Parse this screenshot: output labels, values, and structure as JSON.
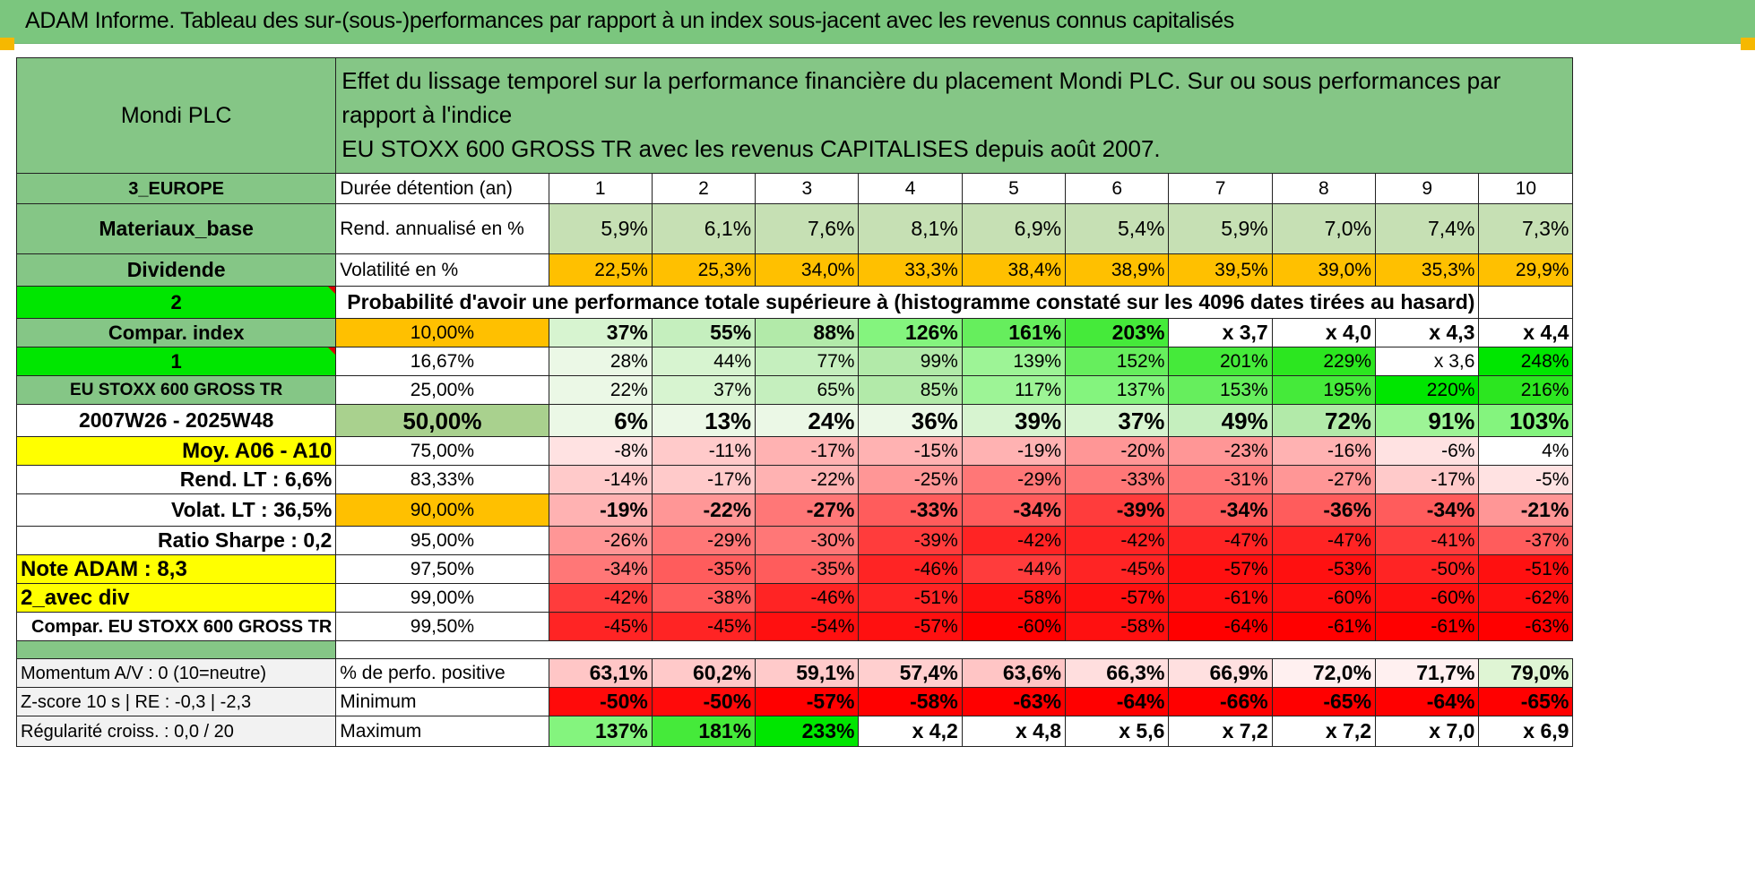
{
  "title": "ADAM Informe. Tableau des sur-(sous-)performances par rapport à un index sous-jacent avec les revenus connus capitalisés",
  "header": {
    "company": "Mondi PLC",
    "description_l1": "Effet du lissage temporel sur la performance financière du placement Mondi PLC. Sur ou sous performances par rapport à l'indice",
    "description_l2": "EU STOXX 600 GROSS TR avec les revenus CAPITALISES depuis août 2007."
  },
  "top_rows": [
    {
      "left": "3_EUROPE",
      "label": "Durée détention (an)",
      "values": [
        "1",
        "2",
        "3",
        "4",
        "5",
        "6",
        "7",
        "8",
        "9",
        "10"
      ]
    },
    {
      "left": "Materiaux_base",
      "label": "Rend. annualisé en %",
      "values": [
        "5,9%",
        "6,1%",
        "7,6%",
        "8,1%",
        "6,9%",
        "5,4%",
        "5,9%",
        "7,0%",
        "7,4%",
        "7,3%"
      ]
    },
    {
      "left": "Dividende",
      "label": "Volatilité en %",
      "values": [
        "22,5%",
        "25,3%",
        "34,0%",
        "33,3%",
        "38,4%",
        "38,9%",
        "39,5%",
        "39,0%",
        "35,3%",
        "29,9%"
      ]
    }
  ],
  "probability_row": {
    "left": "2",
    "text": "Probabilité d'avoir une performance totale supérieure à (histogramme constaté sur les 4096 dates tirées au hasard)"
  },
  "prob_rows": [
    {
      "left": "Compar. index",
      "pct": "10,00%",
      "values": [
        "37%",
        "55%",
        "88%",
        "126%",
        "161%",
        "203%",
        "x 3,7",
        "x 4,0",
        "x 4,3",
        "x 4,4"
      ]
    },
    {
      "left": "1",
      "pct": "16,67%",
      "values": [
        "28%",
        "44%",
        "77%",
        "99%",
        "139%",
        "152%",
        "201%",
        "229%",
        "x 3,6",
        "248%"
      ]
    },
    {
      "left": "EU STOXX 600 GROSS TR",
      "pct": "25,00%",
      "values": [
        "22%",
        "37%",
        "65%",
        "85%",
        "117%",
        "137%",
        "153%",
        "195%",
        "220%",
        "216%"
      ]
    },
    {
      "left": "2007W26 - 2025W48",
      "pct": "50,00%",
      "values": [
        "6%",
        "13%",
        "24%",
        "36%",
        "39%",
        "37%",
        "49%",
        "72%",
        "91%",
        "103%"
      ]
    },
    {
      "left": "Moy. A06 - A10",
      "pct": "75,00%",
      "values": [
        "-8%",
        "-11%",
        "-17%",
        "-15%",
        "-19%",
        "-20%",
        "-23%",
        "-16%",
        "-6%",
        "4%"
      ]
    },
    {
      "left": "Rend. LT :    6,6%",
      "pct": "83,33%",
      "values": [
        "-14%",
        "-17%",
        "-22%",
        "-25%",
        "-29%",
        "-33%",
        "-31%",
        "-27%",
        "-17%",
        "-5%"
      ]
    },
    {
      "left": "Volat. LT :    36,5%",
      "pct": "90,00%",
      "values": [
        "-19%",
        "-22%",
        "-27%",
        "-33%",
        "-34%",
        "-39%",
        "-34%",
        "-36%",
        "-34%",
        "-21%"
      ]
    },
    {
      "left": "Ratio Sharpe :     0,2",
      "pct": "95,00%",
      "values": [
        "-26%",
        "-29%",
        "-30%",
        "-39%",
        "-42%",
        "-42%",
        "-47%",
        "-47%",
        "-41%",
        "-37%"
      ]
    },
    {
      "left": "Note ADAM : 8,3",
      "pct": "97,50%",
      "values": [
        "-34%",
        "-35%",
        "-35%",
        "-46%",
        "-44%",
        "-45%",
        "-57%",
        "-53%",
        "-50%",
        "-51%"
      ]
    },
    {
      "left": "2_avec div",
      "pct": "99,00%",
      "values": [
        "-42%",
        "-38%",
        "-46%",
        "-51%",
        "-58%",
        "-57%",
        "-61%",
        "-60%",
        "-60%",
        "-62%"
      ]
    },
    {
      "left": "Compar. EU STOXX 600 GROSS TR",
      "pct": "99,50%",
      "values": [
        "-45%",
        "-45%",
        "-54%",
        "-57%",
        "-60%",
        "-58%",
        "-64%",
        "-61%",
        "-61%",
        "-63%"
      ]
    }
  ],
  "bottom_rows": [
    {
      "left": "Momentum A/V : 0 (10=neutre)",
      "label": "% de perfo. positive",
      "values": [
        "63,1%",
        "60,2%",
        "59,1%",
        "57,4%",
        "63,6%",
        "66,3%",
        "66,9%",
        "72,0%",
        "71,7%",
        "79,0%"
      ]
    },
    {
      "left": "Z-score 10 s | RE : -0,3 | -2,3",
      "label": "Minimum",
      "values": [
        "-50%",
        "-50%",
        "-57%",
        "-58%",
        "-63%",
        "-64%",
        "-66%",
        "-65%",
        "-64%",
        "-65%"
      ]
    },
    {
      "left": "Régularité croiss. : 0,0 / 20",
      "label": "Maximum",
      "values": [
        "137%",
        "181%",
        "233%",
        "x 4,2",
        "x 4,8",
        "x 5,6",
        "x 7,2",
        "x 7,2",
        "x 7,0",
        "x 6,9"
      ]
    }
  ],
  "colors": {
    "header_green": "#85c686",
    "bright_green": "#00e600",
    "orange": "#ffc000",
    "yellow": "#ffff00",
    "red_text": "#d81414"
  }
}
